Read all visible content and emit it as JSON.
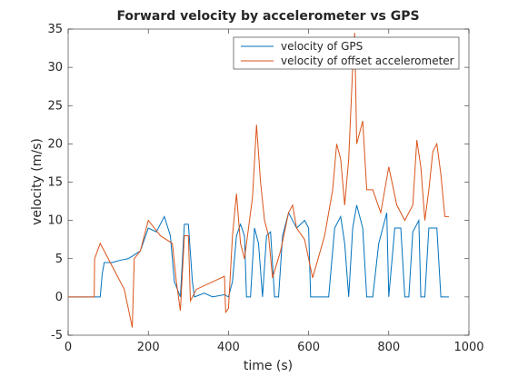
{
  "chart_data": {
    "type": "line",
    "title": "Forward velocity by accelerometer vs GPS",
    "x_label": "time (s)",
    "y_label": "velocity (m/s)",
    "xlim": [
      0,
      1000
    ],
    "xticks": [
      0,
      200,
      400,
      600,
      800,
      1000
    ],
    "ylim": [
      -5,
      35
    ],
    "yticks": [
      -5,
      0,
      5,
      10,
      15,
      20,
      25,
      30,
      35
    ],
    "grid": false,
    "legend": "upper right",
    "series": [
      {
        "name": "velocity of GPS",
        "color": "#0072bd",
        "x": [
          0,
          80,
          85,
          90,
          110,
          130,
          150,
          165,
          180,
          200,
          220,
          240,
          255,
          265,
          280,
          290,
          300,
          310,
          315,
          340,
          360,
          390,
          400,
          410,
          420,
          430,
          440,
          445,
          455,
          465,
          475,
          485,
          495,
          505,
          515,
          525,
          535,
          550,
          570,
          590,
          600,
          605,
          650,
          665,
          680,
          690,
          700,
          710,
          720,
          735,
          745,
          760,
          775,
          795,
          800,
          815,
          830,
          840,
          850,
          860,
          875,
          880,
          890,
          900,
          920,
          930,
          950
        ],
        "values": [
          0,
          0,
          3,
          4.5,
          4.5,
          4.8,
          5,
          5.5,
          6,
          9,
          8.5,
          10.5,
          8,
          2,
          0,
          9.5,
          9.5,
          2,
          0,
          0.5,
          0,
          0.3,
          0,
          2,
          8,
          9.5,
          8,
          0,
          0,
          9,
          7,
          0,
          8,
          8.5,
          0,
          0,
          8,
          11,
          9,
          10,
          9,
          0,
          0,
          9,
          10.5,
          7,
          0,
          9,
          12,
          9,
          0,
          0,
          7,
          11,
          0,
          9,
          9,
          0,
          0,
          8.5,
          10,
          0,
          0,
          9,
          9,
          0,
          0
        ]
      },
      {
        "name": "velocity of offset accelerometer",
        "color": "#d95319",
        "x": [
          0,
          65,
          66,
          80,
          100,
          120,
          140,
          160,
          165,
          180,
          200,
          230,
          260,
          270,
          280,
          290,
          300,
          305,
          320,
          390,
          393,
          400,
          410,
          420,
          430,
          440,
          460,
          470,
          480,
          490,
          500,
          510,
          530,
          550,
          560,
          570,
          590,
          600,
          610,
          640,
          660,
          670,
          680,
          690,
          700,
          710,
          715,
          720,
          735,
          745,
          760,
          780,
          800,
          820,
          840,
          860,
          870,
          880,
          890,
          900,
          910,
          920,
          930,
          940,
          950
        ],
        "values": [
          0,
          0,
          5,
          7,
          5,
          3,
          1,
          -4,
          5,
          6,
          10,
          8,
          7,
          2,
          -1.8,
          8,
          8,
          -0.5,
          1,
          2.7,
          -2,
          -1.5,
          8,
          13.5,
          7,
          5,
          13,
          22.5,
          15,
          10,
          8,
          2.5,
          6,
          11,
          12,
          9,
          7.5,
          5,
          2.5,
          8,
          14,
          20,
          18,
          12,
          18,
          30,
          34.5,
          20,
          23,
          14,
          14,
          11,
          17,
          12,
          10,
          12,
          20.5,
          17,
          10,
          14,
          19,
          20,
          16,
          10.5,
          10.5
        ]
      }
    ]
  }
}
